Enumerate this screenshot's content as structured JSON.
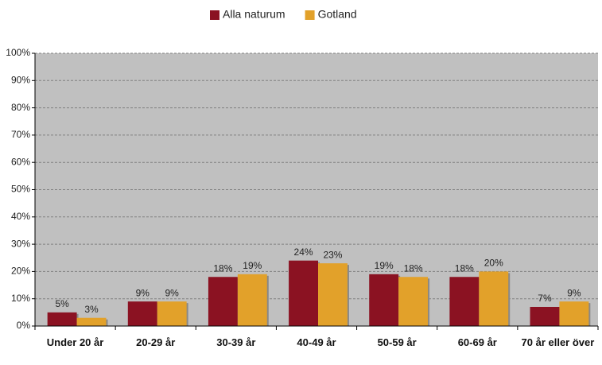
{
  "chart_data": {
    "type": "bar",
    "categories": [
      "Under 20 år",
      "20-29 år",
      "30-39 år",
      "40-49 år",
      "50-59 år",
      "60-69 år",
      "70 år eller över"
    ],
    "series": [
      {
        "name": "Alla naturum",
        "color": "#8b1222",
        "values": [
          5,
          9,
          18,
          24,
          19,
          18,
          7
        ],
        "value_labels": [
          "5%",
          "9%",
          "18%",
          "24%",
          "19%",
          "18%",
          "7%"
        ]
      },
      {
        "name": "Gotland",
        "color": "#e2a12a",
        "values": [
          3,
          9,
          19,
          23,
          18,
          20,
          9
        ],
        "value_labels": [
          "3%",
          "9%",
          "19%",
          "23%",
          "18%",
          "20%",
          "9%"
        ]
      }
    ],
    "ylim": [
      0,
      100
    ],
    "yticks": [
      {
        "value": 0,
        "label": "0%"
      },
      {
        "value": 10,
        "label": "10%"
      },
      {
        "value": 20,
        "label": "20%"
      },
      {
        "value": 30,
        "label": "30%"
      },
      {
        "value": 40,
        "label": "40%"
      },
      {
        "value": 50,
        "label": "50%"
      },
      {
        "value": 60,
        "label": "60%"
      },
      {
        "value": 70,
        "label": "70%"
      },
      {
        "value": 80,
        "label": "80%"
      },
      {
        "value": 90,
        "label": "90%"
      },
      {
        "value": 100,
        "label": "100%"
      }
    ],
    "grid": true
  }
}
